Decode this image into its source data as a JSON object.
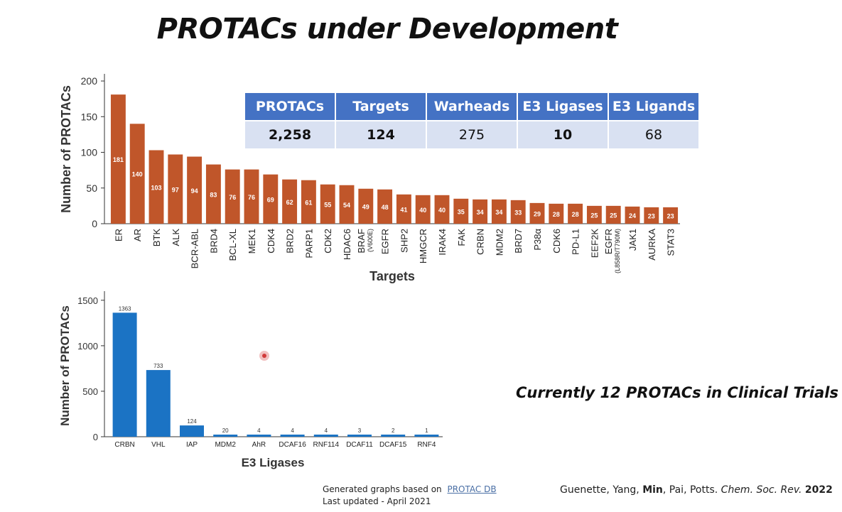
{
  "title": "PROTACs under Development",
  "stats": {
    "headers": [
      "PROTACs",
      "Targets",
      "Warheads",
      "E3 Ligases",
      "E3 Ligands"
    ],
    "values": [
      "2,258",
      "124",
      "275",
      "10",
      "68"
    ]
  },
  "clinical_note": "Currently 12 PROTACs in Clinical Trials",
  "source": {
    "prefix": "Generated graphs based on",
    "link": "PROTAC DB",
    "updated": "Last updated - April 2021"
  },
  "citation": {
    "authors_a": "Guenette, Yang,",
    "author_bold": "Min",
    "authors_b": ", Pai, Potts.",
    "journal": "Chem. Soc. Rev.",
    "year": "2022"
  },
  "colors": {
    "targets_bar": "#c0562a",
    "ligase_bar": "#1b73c4",
    "table_header": "#4472c4",
    "table_cell": "#d9e1f2"
  },
  "chart_data": [
    {
      "type": "bar",
      "title": "",
      "xlabel": "Targets",
      "ylabel": "Number of PROTACs",
      "ylim": [
        0,
        210
      ],
      "yticks": [
        0,
        50,
        100,
        150,
        200
      ],
      "categories": [
        "ER",
        "AR",
        "BTK",
        "ALK",
        "BCR-ABL",
        "BRD4",
        "BCL-XL",
        "MEK1",
        "CDK4",
        "BRD2",
        "PARP1",
        "CDK2",
        "HDAC6",
        "BRAF",
        "EGFR",
        "SHP2",
        "HMGCR",
        "IRAK4",
        "FAK",
        "CRBN",
        "MDM2",
        "BRD7",
        "P38α",
        "CDK6",
        "PD-L1",
        "EEF2K",
        "EGFR",
        "JAK1",
        "AURKA",
        "STAT3"
      ],
      "category_sublabels": {
        "13": "(V600E)",
        "26": "(L858R/T790M)"
      },
      "values": [
        181,
        140,
        103,
        97,
        94,
        83,
        76,
        76,
        69,
        62,
        61,
        55,
        54,
        49,
        48,
        41,
        40,
        40,
        35,
        34,
        34,
        33,
        29,
        28,
        28,
        25,
        25,
        24,
        23,
        23
      ]
    },
    {
      "type": "bar",
      "title": "",
      "xlabel": "E3 Ligases",
      "ylabel": "Number of PROTACs",
      "ylim": [
        0,
        1600
      ],
      "yticks": [
        0,
        500,
        1000,
        1500
      ],
      "categories": [
        "CRBN",
        "VHL",
        "IAP",
        "MDM2",
        "AhR",
        "DCAF16",
        "RNF114",
        "DCAF11",
        "DCAF15",
        "RNF4"
      ],
      "values": [
        1363,
        733,
        124,
        20,
        4,
        4,
        4,
        3,
        2,
        1
      ]
    }
  ]
}
